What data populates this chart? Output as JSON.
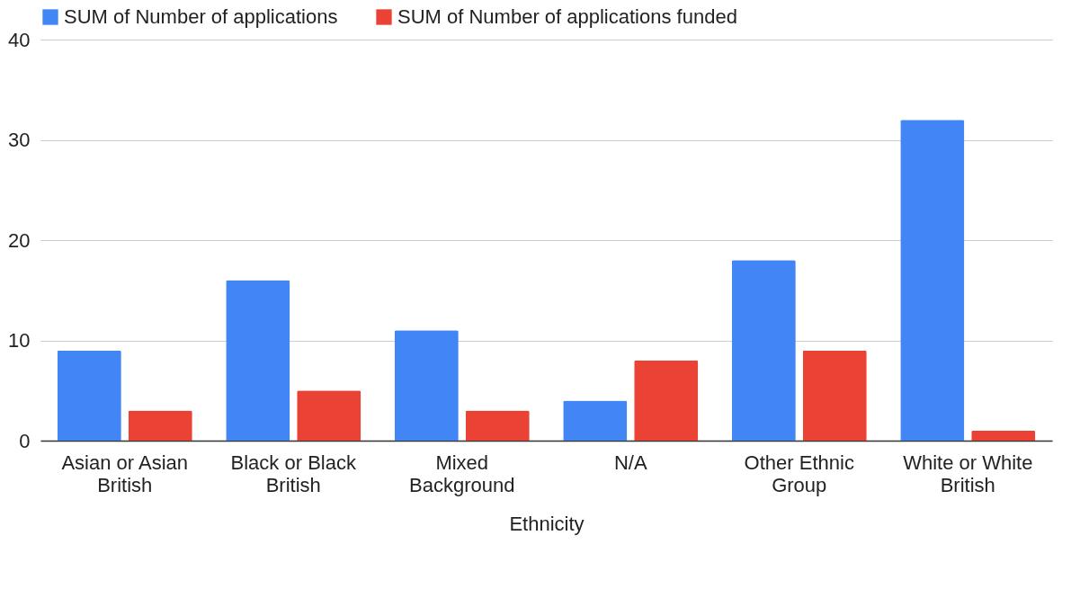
{
  "chart_data": {
    "type": "bar",
    "xlabel": "Ethnicity",
    "categories": [
      "Asian or Asian British",
      "Black or Black British",
      "Mixed Background",
      "N/A",
      "Other Ethnic Group",
      "White or White British"
    ],
    "series": [
      {
        "name": "SUM of Number of applications",
        "color": "#4285f4",
        "values": [
          9,
          16,
          11,
          4,
          18,
          32
        ]
      },
      {
        "name": "SUM of Number of applications funded",
        "color": "#ea4335",
        "values": [
          3,
          5,
          3,
          8,
          9,
          1
        ]
      }
    ],
    "ylim": [
      0,
      40
    ],
    "yticks": [
      0,
      10,
      20,
      30,
      40
    ],
    "grid": "y",
    "legend": "top"
  }
}
